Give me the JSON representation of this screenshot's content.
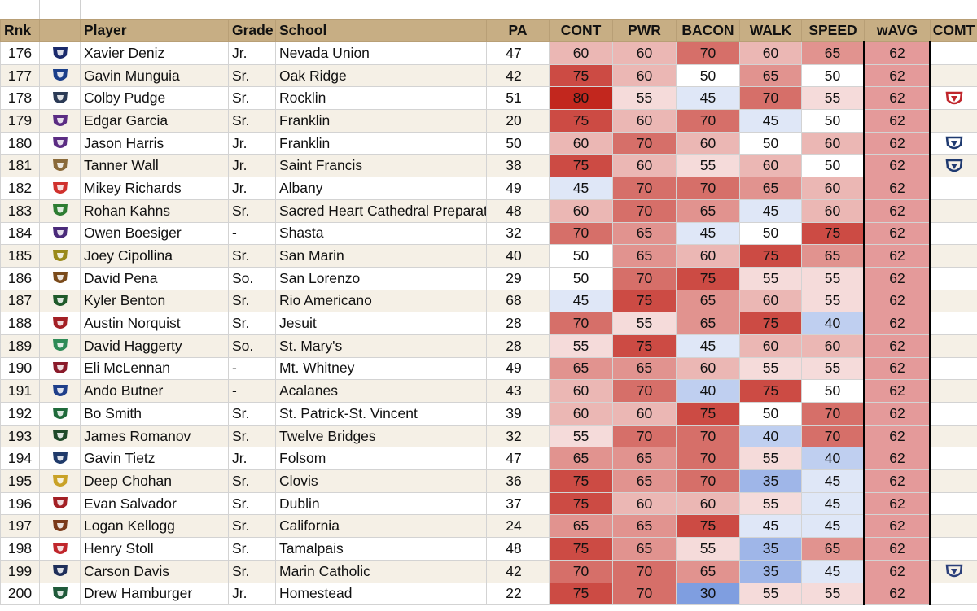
{
  "columns": {
    "rnk": "Rnk",
    "player": "Player",
    "grade": "Grade",
    "school": "School",
    "pa": "PA",
    "cont": "CONT",
    "pwr": "PWR",
    "bacon": "BACON",
    "walk": "WALK",
    "speed": "SPEED",
    "wavg": "wAVG",
    "comt": "COMT"
  },
  "colors": {
    "header_bg": "#c7ae84",
    "row_alt_bg": "#f5f0e6",
    "wavg_bg": "#e49a9a",
    "heat_high": "#c2271e",
    "heat_mid": "#ffffff",
    "heat_low": "#7f9ee0"
  },
  "rows": [
    {
      "rank": "176",
      "player": "Xavier Deniz",
      "grade": "Jr.",
      "school": "Nevada Union",
      "pa": "47",
      "cont": "60",
      "pwr": "60",
      "bacon": "70",
      "walk": "60",
      "speed": "65",
      "wavg": "62",
      "logo_icon": "nevada-union-logo-icon",
      "logo_color": "#1a2a6c",
      "comt_icon": ""
    },
    {
      "rank": "177",
      "player": "Gavin Munguia",
      "grade": "Sr.",
      "school": "Oak Ridge",
      "pa": "42",
      "cont": "75",
      "pwr": "60",
      "bacon": "50",
      "walk": "65",
      "speed": "50",
      "wavg": "62",
      "logo_icon": "oak-ridge-logo-icon",
      "logo_color": "#1b3f8a",
      "comt_icon": ""
    },
    {
      "rank": "178",
      "player": "Colby Pudge",
      "grade": "Sr.",
      "school": "Rocklin",
      "pa": "51",
      "cont": "80",
      "pwr": "55",
      "bacon": "45",
      "walk": "70",
      "speed": "55",
      "wavg": "62",
      "logo_icon": "rocklin-logo-icon",
      "logo_color": "#2b3a55",
      "comt_icon": "jessup-logo-icon",
      "comt_color": "#c0262c"
    },
    {
      "rank": "179",
      "player": "Edgar Garcia",
      "grade": "Sr.",
      "school": "Franklin",
      "pa": "20",
      "cont": "75",
      "pwr": "60",
      "bacon": "70",
      "walk": "45",
      "speed": "50",
      "wavg": "62",
      "logo_icon": "franklin-logo-icon",
      "logo_color": "#5b2c83",
      "comt_icon": ""
    },
    {
      "rank": "180",
      "player": "Jason Harris",
      "grade": "Jr.",
      "school": "Franklin",
      "pa": "50",
      "cont": "60",
      "pwr": "70",
      "bacon": "60",
      "walk": "50",
      "speed": "60",
      "wavg": "62",
      "logo_icon": "franklin-logo-icon",
      "logo_color": "#5b2c83",
      "comt_icon": "cal-logo-icon",
      "comt_color": "#1f3a70"
    },
    {
      "rank": "181",
      "player": "Tanner Wall",
      "grade": "Jr.",
      "school": "Saint Francis",
      "pa": "38",
      "cont": "75",
      "pwr": "60",
      "bacon": "55",
      "walk": "60",
      "speed": "50",
      "wavg": "62",
      "logo_icon": "saint-francis-logo-icon",
      "logo_color": "#8a6a3a",
      "comt_icon": "pepperdine-logo-icon",
      "comt_color": "#1f3a70"
    },
    {
      "rank": "182",
      "player": "Mikey Richards",
      "grade": "Jr.",
      "school": "Albany",
      "pa": "49",
      "cont": "45",
      "pwr": "70",
      "bacon": "70",
      "walk": "65",
      "speed": "60",
      "wavg": "62",
      "logo_icon": "albany-logo-icon",
      "logo_color": "#d0312d",
      "comt_icon": ""
    },
    {
      "rank": "183",
      "player": "Rohan Kahns",
      "grade": "Sr.",
      "school": "Sacred Heart Cathedral Preparat",
      "pa": "48",
      "cont": "60",
      "pwr": "70",
      "bacon": "65",
      "walk": "45",
      "speed": "60",
      "wavg": "62",
      "logo_icon": "sacred-heart-logo-icon",
      "logo_color": "#2e7d32",
      "comt_icon": ""
    },
    {
      "rank": "184",
      "player": "Owen Boesiger",
      "grade": "-",
      "school": "Shasta",
      "pa": "32",
      "cont": "70",
      "pwr": "65",
      "bacon": "45",
      "walk": "50",
      "speed": "75",
      "wavg": "62",
      "logo_icon": "shasta-logo-icon",
      "logo_color": "#4a2a7a",
      "comt_icon": ""
    },
    {
      "rank": "185",
      "player": "Joey Cipollina",
      "grade": "Sr.",
      "school": "San Marin",
      "pa": "40",
      "cont": "50",
      "pwr": "65",
      "bacon": "60",
      "walk": "75",
      "speed": "65",
      "wavg": "62",
      "logo_icon": "san-marin-logo-icon",
      "logo_color": "#9a8a1a",
      "comt_icon": ""
    },
    {
      "rank": "186",
      "player": "David Pena",
      "grade": "So.",
      "school": "San Lorenzo",
      "pa": "29",
      "cont": "50",
      "pwr": "70",
      "bacon": "75",
      "walk": "55",
      "speed": "55",
      "wavg": "62",
      "logo_icon": "san-lorenzo-logo-icon",
      "logo_color": "#7a4a1a",
      "comt_icon": ""
    },
    {
      "rank": "187",
      "player": "Kyler Benton",
      "grade": "Sr.",
      "school": "Rio Americano",
      "pa": "68",
      "cont": "45",
      "pwr": "75",
      "bacon": "65",
      "walk": "60",
      "speed": "55",
      "wavg": "62",
      "logo_icon": "rio-americano-logo-icon",
      "logo_color": "#1f5a2a",
      "comt_icon": ""
    },
    {
      "rank": "188",
      "player": "Austin Norquist",
      "grade": "Sr.",
      "school": "Jesuit",
      "pa": "28",
      "cont": "70",
      "pwr": "55",
      "bacon": "65",
      "walk": "75",
      "speed": "40",
      "wavg": "62",
      "logo_icon": "jesuit-logo-icon",
      "logo_color": "#a31f24",
      "comt_icon": ""
    },
    {
      "rank": "189",
      "player": "David Haggerty",
      "grade": "So.",
      "school": "St. Mary's",
      "pa": "28",
      "cont": "55",
      "pwr": "75",
      "bacon": "45",
      "walk": "60",
      "speed": "60",
      "wavg": "62",
      "logo_icon": "st-marys-logo-icon",
      "logo_color": "#2e8b57",
      "comt_icon": ""
    },
    {
      "rank": "190",
      "player": "Eli McLennan",
      "grade": "-",
      "school": "Mt. Whitney",
      "pa": "49",
      "cont": "65",
      "pwr": "65",
      "bacon": "60",
      "walk": "55",
      "speed": "55",
      "wavg": "62",
      "logo_icon": "mt-whitney-logo-icon",
      "logo_color": "#8a1a2a",
      "comt_icon": ""
    },
    {
      "rank": "191",
      "player": "Ando Butner",
      "grade": "-",
      "school": "Acalanes",
      "pa": "43",
      "cont": "60",
      "pwr": "70",
      "bacon": "40",
      "walk": "75",
      "speed": "50",
      "wavg": "62",
      "logo_icon": "acalanes-logo-icon",
      "logo_color": "#1f3f8a",
      "comt_icon": ""
    },
    {
      "rank": "192",
      "player": "Bo Smith",
      "grade": "Sr.",
      "school": "St. Patrick-St. Vincent",
      "pa": "39",
      "cont": "60",
      "pwr": "60",
      "bacon": "75",
      "walk": "50",
      "speed": "70",
      "wavg": "62",
      "logo_icon": "st-patrick-logo-icon",
      "logo_color": "#1f6a3a",
      "comt_icon": ""
    },
    {
      "rank": "193",
      "player": "James Romanov",
      "grade": "Sr.",
      "school": "Twelve Bridges",
      "pa": "32",
      "cont": "55",
      "pwr": "70",
      "bacon": "70",
      "walk": "40",
      "speed": "70",
      "wavg": "62",
      "logo_icon": "twelve-bridges-logo-icon",
      "logo_color": "#1f4a2a",
      "comt_icon": ""
    },
    {
      "rank": "194",
      "player": "Gavin Tietz",
      "grade": "Jr.",
      "school": "Folsom",
      "pa": "47",
      "cont": "65",
      "pwr": "65",
      "bacon": "70",
      "walk": "55",
      "speed": "40",
      "wavg": "62",
      "logo_icon": "folsom-logo-icon",
      "logo_color": "#1f3a6a",
      "comt_icon": ""
    },
    {
      "rank": "195",
      "player": "Deep Chohan",
      "grade": "Sr.",
      "school": "Clovis",
      "pa": "36",
      "cont": "75",
      "pwr": "65",
      "bacon": "70",
      "walk": "35",
      "speed": "45",
      "wavg": "62",
      "logo_icon": "clovis-logo-icon",
      "logo_color": "#c9a227",
      "comt_icon": ""
    },
    {
      "rank": "196",
      "player": "Evan Salvador",
      "grade": "Sr.",
      "school": "Dublin",
      "pa": "37",
      "cont": "75",
      "pwr": "60",
      "bacon": "60",
      "walk": "55",
      "speed": "45",
      "wavg": "62",
      "logo_icon": "dublin-logo-icon",
      "logo_color": "#a31f24",
      "comt_icon": ""
    },
    {
      "rank": "197",
      "player": "Logan Kellogg",
      "grade": "Sr.",
      "school": "California",
      "pa": "24",
      "cont": "65",
      "pwr": "65",
      "bacon": "75",
      "walk": "45",
      "speed": "45",
      "wavg": "62",
      "logo_icon": "california-logo-icon",
      "logo_color": "#7a3a1a",
      "comt_icon": ""
    },
    {
      "rank": "198",
      "player": "Henry Stoll",
      "grade": "Sr.",
      "school": "Tamalpais",
      "pa": "48",
      "cont": "75",
      "pwr": "65",
      "bacon": "55",
      "walk": "35",
      "speed": "65",
      "wavg": "62",
      "logo_icon": "tamalpais-logo-icon",
      "logo_color": "#c0262c",
      "comt_icon": ""
    },
    {
      "rank": "199",
      "player": "Carson Davis",
      "grade": "Sr.",
      "school": "Marin Catholic",
      "pa": "42",
      "cont": "70",
      "pwr": "70",
      "bacon": "65",
      "walk": "35",
      "speed": "45",
      "wavg": "62",
      "logo_icon": "marin-catholic-logo-icon",
      "logo_color": "#1f2f5a",
      "comt_icon": "washington-logo-icon",
      "comt_color": "#2b3f7a"
    },
    {
      "rank": "200",
      "player": "Drew Hamburger",
      "grade": "Jr.",
      "school": "Homestead",
      "pa": "22",
      "cont": "75",
      "pwr": "70",
      "bacon": "30",
      "walk": "55",
      "speed": "55",
      "wavg": "62",
      "logo_icon": "homestead-logo-icon",
      "logo_color": "#1f5a3a",
      "comt_icon": ""
    }
  ]
}
